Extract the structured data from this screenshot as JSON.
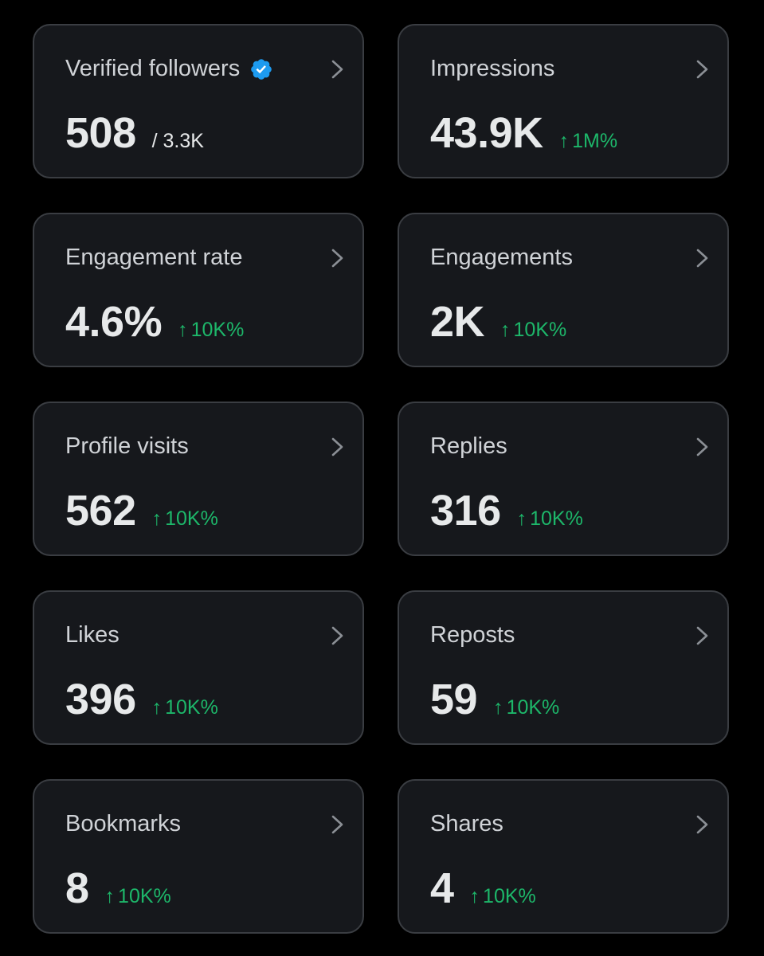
{
  "cards": [
    {
      "title": "Verified followers",
      "verified": true,
      "value": "508",
      "sub": "/ 3.3K"
    },
    {
      "title": "Impressions",
      "value": "43.9K",
      "delta_arrow": "↑",
      "delta": "1M%"
    },
    {
      "title": "Engagement rate",
      "value": "4.6%",
      "delta_arrow": "↑",
      "delta": "10K%"
    },
    {
      "title": "Engagements",
      "value": "2K",
      "delta_arrow": "↑",
      "delta": "10K%"
    },
    {
      "title": "Profile visits",
      "value": "562",
      "delta_arrow": "↑",
      "delta": "10K%"
    },
    {
      "title": "Replies",
      "value": "316",
      "delta_arrow": "↑",
      "delta": "10K%"
    },
    {
      "title": "Likes",
      "value": "396",
      "delta_arrow": "↑",
      "delta": "10K%"
    },
    {
      "title": "Reposts",
      "value": "59",
      "delta_arrow": "↑",
      "delta": "10K%"
    },
    {
      "title": "Bookmarks",
      "value": "8",
      "delta_arrow": "↑",
      "delta": "10K%"
    },
    {
      "title": "Shares",
      "value": "4",
      "delta_arrow": "↑",
      "delta": "10K%"
    }
  ],
  "colors": {
    "background": "#000000",
    "card": "#16181c",
    "border": "#3a3d42",
    "positive": "#1db76a",
    "verified": "#1d9bf0"
  },
  "icons": {
    "verified": "verified-badge-icon",
    "chevron": "chevron-right-icon"
  }
}
